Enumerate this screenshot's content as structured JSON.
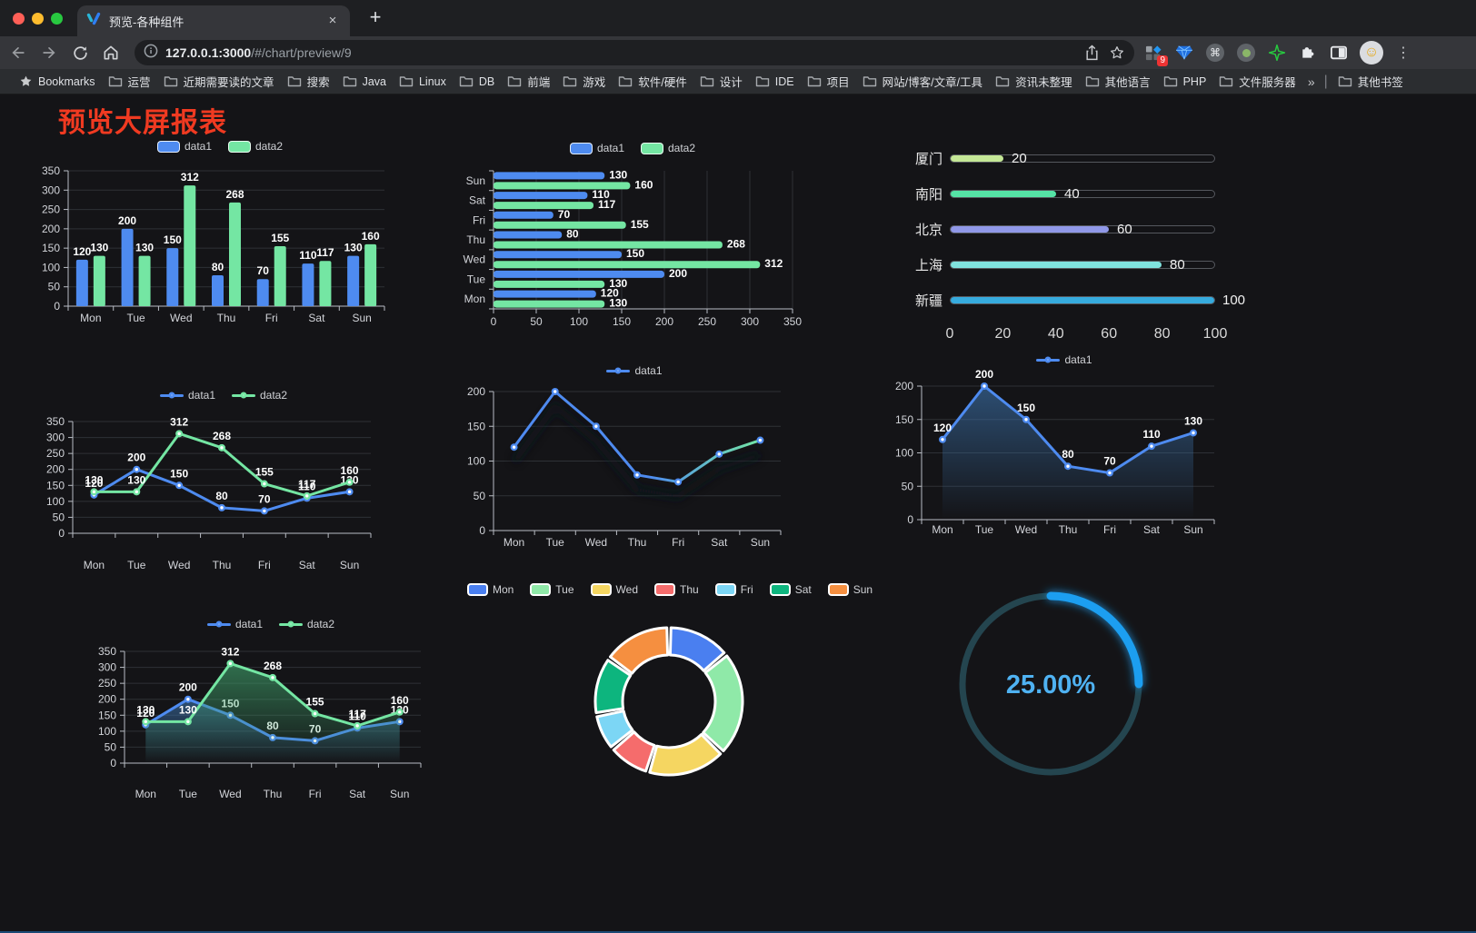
{
  "browser": {
    "tab_title": "预览-各种组件",
    "close_label": "×",
    "newtab_label": "+",
    "url_host": "127.0.0.1:3000",
    "url_path": "/#/chart/preview/9",
    "ext_badge": "9",
    "avatar_glyph": "☺",
    "kebab_glyph": "⋮",
    "cmd_glyph": "⌘",
    "bookmarks_label": "Bookmarks",
    "bookmarks": [
      "运营",
      "近期需要读的文章",
      "搜索",
      "Java",
      "Linux",
      "DB",
      "前端",
      "游戏",
      "软件/硬件",
      "设计",
      "IDE",
      "项目",
      "网站/博客/文章/工具",
      "资讯未整理",
      "其他语言",
      "PHP",
      "文件服务器"
    ],
    "bookmarks_overflow": "»",
    "other_bookmarks": "其他书签"
  },
  "page": {
    "title": "预览大屏报表",
    "title_color": "#f03a21"
  },
  "chart_data": [
    {
      "type": "bar",
      "categories": [
        "Mon",
        "Tue",
        "Wed",
        "Thu",
        "Fri",
        "Sat",
        "Sun"
      ],
      "series": [
        {
          "name": "data1",
          "color": "#4E8BF0",
          "values": [
            120,
            200,
            150,
            80,
            70,
            110,
            130
          ]
        },
        {
          "name": "data2",
          "color": "#74E6A3",
          "values": [
            130,
            130,
            312,
            268,
            155,
            117,
            160
          ]
        }
      ],
      "ylim": [
        0,
        350
      ],
      "yticks": [
        0,
        50,
        100,
        150,
        200,
        250,
        300,
        350
      ],
      "legend_position": "top",
      "grid": true,
      "data_labels": true
    },
    {
      "type": "hbar",
      "categories": [
        "Mon",
        "Tue",
        "Wed",
        "Thu",
        "Fri",
        "Sat",
        "Sun"
      ],
      "series": [
        {
          "name": "data1",
          "color": "#4E8BF0",
          "values": [
            120,
            200,
            150,
            80,
            70,
            110,
            130
          ]
        },
        {
          "name": "data2",
          "color": "#74E6A3",
          "values": [
            130,
            130,
            312,
            268,
            155,
            117,
            160
          ]
        }
      ],
      "xlim": [
        0,
        350
      ],
      "xticks": [
        0,
        50,
        100,
        150,
        200,
        250,
        300,
        350
      ],
      "legend_position": "top",
      "grid": true,
      "data_labels": true
    },
    {
      "type": "progress",
      "max": 100,
      "xticks": [
        0,
        20,
        40,
        60,
        80,
        100
      ],
      "items": [
        {
          "label": "厦门",
          "value": 20,
          "color": "#C4E796"
        },
        {
          "label": "南阳",
          "value": 40,
          "color": "#55E3A6"
        },
        {
          "label": "北京",
          "value": 60,
          "color": "#9098E8"
        },
        {
          "label": "上海",
          "value": 80,
          "color": "#80E2DE"
        },
        {
          "label": "新疆",
          "value": 100,
          "color": "#36ABDE"
        }
      ]
    },
    {
      "type": "line",
      "categories": [
        "Mon",
        "Tue",
        "Wed",
        "Thu",
        "Fri",
        "Sat",
        "Sun"
      ],
      "series": [
        {
          "name": "data1",
          "color": "#4E8BF0",
          "values": [
            120,
            200,
            150,
            80,
            70,
            110,
            130
          ]
        },
        {
          "name": "data2",
          "color": "#74E6A3",
          "values": [
            130,
            130,
            312,
            268,
            155,
            117,
            160
          ]
        }
      ],
      "ylim": [
        0,
        350
      ],
      "yticks": [
        0,
        50,
        100,
        150,
        200,
        250,
        300,
        350
      ],
      "legend_position": "top",
      "data_labels": true
    },
    {
      "type": "line",
      "categories": [
        "Mon",
        "Tue",
        "Wed",
        "Thu",
        "Fri",
        "Sat",
        "Sun"
      ],
      "series": [
        {
          "name": "data1",
          "color": "#4E8BF0",
          "values": [
            120,
            200,
            150,
            80,
            70,
            110,
            130
          ]
        }
      ],
      "gradient": [
        "#4E8BF0",
        "#74E6A3"
      ],
      "shadow": true,
      "ylim": [
        0,
        200
      ],
      "yticks": [
        0,
        50,
        100,
        150,
        200
      ],
      "legend_position": "top",
      "data_labels": false
    },
    {
      "type": "area",
      "categories": [
        "Mon",
        "Tue",
        "Wed",
        "Thu",
        "Fri",
        "Sat",
        "Sun"
      ],
      "series": [
        {
          "name": "data1",
          "color": "#4E8BF0",
          "values": [
            120,
            200,
            150,
            80,
            70,
            110,
            130
          ]
        }
      ],
      "fill_colors": [
        "#3A6EA5"
      ],
      "ylim": [
        0,
        200
      ],
      "yticks": [
        0,
        50,
        100,
        150,
        200
      ],
      "legend_position": "top",
      "data_labels": true
    },
    {
      "type": "area",
      "categories": [
        "Mon",
        "Tue",
        "Wed",
        "Thu",
        "Fri",
        "Sat",
        "Sun"
      ],
      "series": [
        {
          "name": "data1",
          "color": "#4E8BF0",
          "values": [
            120,
            200,
            150,
            80,
            70,
            110,
            130
          ]
        },
        {
          "name": "data2",
          "color": "#74E6A3",
          "values": [
            130,
            130,
            312,
            268,
            155,
            117,
            160
          ]
        }
      ],
      "fill_colors": [
        "#3A6EA5",
        "#3FA06A"
      ],
      "ylim": [
        0,
        350
      ],
      "yticks": [
        0,
        50,
        100,
        150,
        200,
        250,
        300,
        350
      ],
      "legend_position": "top",
      "data_labels": true
    },
    {
      "type": "donut",
      "categories": [
        "Mon",
        "Tue",
        "Wed",
        "Thu",
        "Fri",
        "Sat",
        "Sun"
      ],
      "values": [
        120,
        200,
        150,
        80,
        70,
        110,
        130
      ],
      "colors": [
        "#4A7FF0",
        "#8FE9A8",
        "#F5D661",
        "#F56C6C",
        "#7CD6F5",
        "#0DB57E",
        "#F58F40"
      ],
      "legend_position": "top"
    },
    {
      "type": "gauge",
      "value_label": "25.00%",
      "percent": 25,
      "color": "#1C9EF0",
      "track_color": "#24454F",
      "text_color": "#4FB2F2"
    }
  ]
}
